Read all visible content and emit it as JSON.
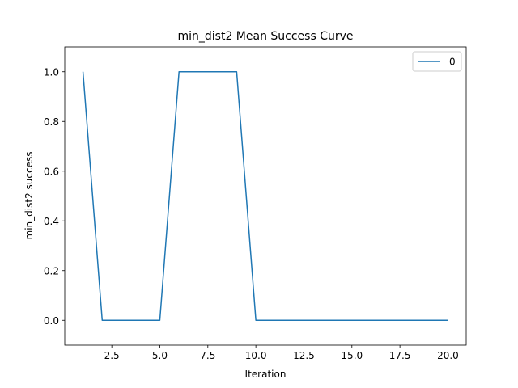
{
  "chart_data": {
    "type": "line",
    "title": "min_dist2 Mean Success Curve",
    "xlabel": "Iteration",
    "ylabel": "min_dist2 success",
    "xlim": [
      0.05,
      20.95
    ],
    "ylim": [
      -0.1,
      1.1
    ],
    "xticks": [
      2.5,
      5.0,
      7.5,
      10.0,
      12.5,
      15.0,
      17.5,
      20.0
    ],
    "yticks": [
      0.0,
      0.2,
      0.4,
      0.6,
      0.8,
      1.0
    ],
    "grid": false,
    "legend_position": "top-right",
    "series": [
      {
        "name": "0",
        "color": "#1f77b4",
        "x": [
          1,
          2,
          3,
          4,
          5,
          6,
          7,
          8,
          9,
          10,
          11,
          12,
          13,
          14,
          15,
          16,
          17,
          18,
          19,
          20
        ],
        "y": [
          1,
          0,
          0,
          0,
          0,
          1,
          1,
          1,
          1,
          0,
          0,
          0,
          0,
          0,
          0,
          0,
          0,
          0,
          0,
          0
        ]
      }
    ]
  }
}
